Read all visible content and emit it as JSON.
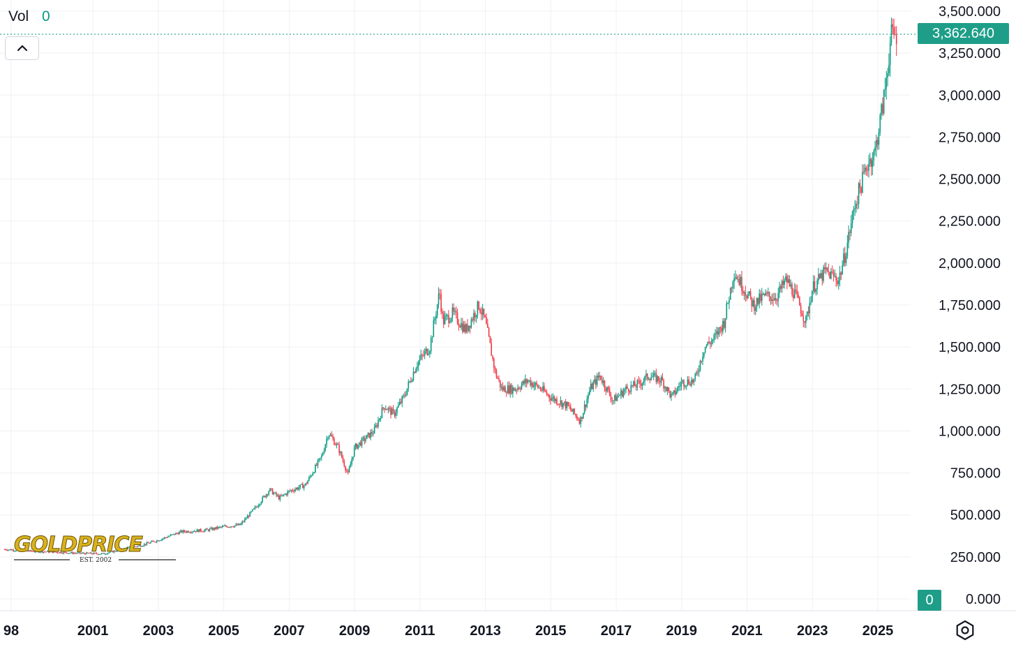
{
  "indicator": {
    "label": "Vol",
    "value": "0"
  },
  "last_price_label": "3,362.640",
  "volume_scale_label": "0",
  "logo": {
    "text": "GOLDPRICE",
    "subtitle": "EST. 2002"
  },
  "colors": {
    "up": "#089981",
    "down": "#f23645",
    "grid": "#eef0f3",
    "accent": "#1e9e88"
  },
  "icons": {
    "collapse": "chevron-up-icon",
    "settings": "gear-icon"
  },
  "chart_data": {
    "type": "candlestick",
    "y_ticks": [
      "3,500.000",
      "3,250.000",
      "3,000.000",
      "2,750.000",
      "2,500.000",
      "2,250.000",
      "2,000.000",
      "1,750.000",
      "1,500.000",
      "1,250.000",
      "1,000.000",
      "750.000",
      "500.000",
      "250.000",
      "0.000"
    ],
    "y_tick_values": [
      3500,
      3250,
      3000,
      2750,
      2500,
      2250,
      2000,
      1750,
      1500,
      1250,
      1000,
      750,
      500,
      250,
      0
    ],
    "x_ticks": [
      "98",
      "2001",
      "2003",
      "2005",
      "2007",
      "2009",
      "2011",
      "2013",
      "2015",
      "2017",
      "2019",
      "2021",
      "2023",
      "2025"
    ],
    "x_tick_values": [
      1998.5,
      2001,
      2003,
      2005,
      2007,
      2009,
      2011,
      2013,
      2015,
      2017,
      2019,
      2021,
      2023,
      2025
    ],
    "ylim": [
      0,
      3500
    ],
    "xlim": [
      1998.2,
      2026.5
    ],
    "last_price": 3362.64,
    "grid": true,
    "x": [
      1998.3,
      1999.0,
      1999.7,
      2000.5,
      2001.3,
      2002.0,
      2002.5,
      2003.0,
      2003.7,
      2004.5,
      2005.0,
      2005.5,
      2006.0,
      2006.4,
      2006.7,
      2007.0,
      2007.5,
      2008.0,
      2008.2,
      2008.5,
      2008.8,
      2009.0,
      2009.3,
      2009.6,
      2009.9,
      2010.2,
      2010.5,
      2010.9,
      2011.3,
      2011.6,
      2011.7,
      2012.0,
      2012.4,
      2012.8,
      2013.0,
      2013.3,
      2013.5,
      2013.9,
      2014.3,
      2014.7,
      2015.0,
      2015.5,
      2015.9,
      2016.2,
      2016.5,
      2016.9,
      2017.3,
      2017.7,
      2018.0,
      2018.4,
      2018.7,
      2019.0,
      2019.4,
      2019.7,
      2020.0,
      2020.3,
      2020.6,
      2020.9,
      2021.2,
      2021.5,
      2021.9,
      2022.2,
      2022.5,
      2022.8,
      2023.0,
      2023.4,
      2023.8,
      2024.0,
      2024.3,
      2024.7,
      2024.9,
      2025.2,
      2025.4,
      2025.6
    ],
    "y": [
      295,
      285,
      280,
      272,
      268,
      300,
      320,
      350,
      400,
      410,
      430,
      440,
      550,
      650,
      600,
      640,
      680,
      850,
      990,
      900,
      740,
      900,
      950,
      1000,
      1150,
      1100,
      1200,
      1400,
      1500,
      1830,
      1650,
      1700,
      1600,
      1750,
      1650,
      1350,
      1250,
      1250,
      1300,
      1250,
      1200,
      1150,
      1060,
      1250,
      1330,
      1180,
      1250,
      1280,
      1330,
      1300,
      1200,
      1290,
      1300,
      1500,
      1550,
      1650,
      1950,
      1850,
      1750,
      1800,
      1800,
      1900,
      1800,
      1650,
      1850,
      1950,
      1900,
      2050,
      2350,
      2600,
      2650,
      3000,
      3350,
      3362.64
    ]
  }
}
